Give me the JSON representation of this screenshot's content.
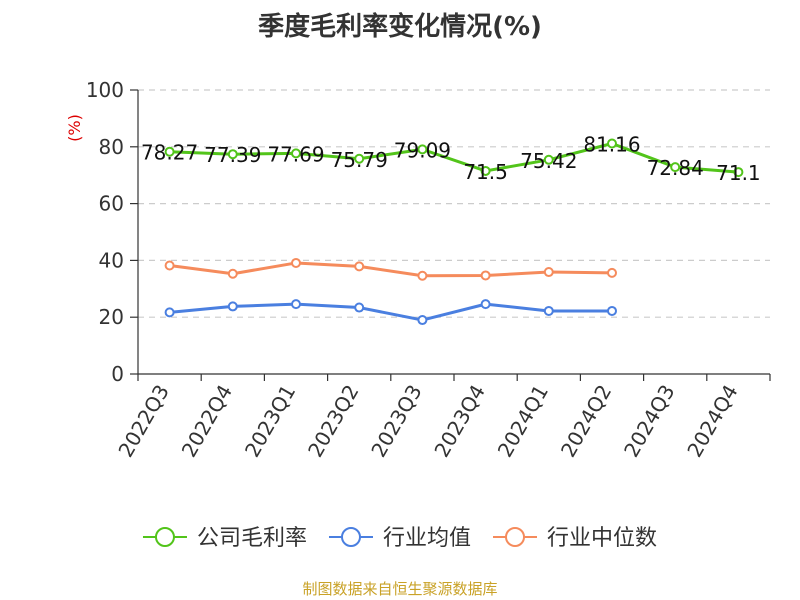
{
  "chart_data": {
    "type": "line",
    "title": "季度毛利率变化情况(%)",
    "y_unit": "(%)",
    "categories": [
      "2022Q3",
      "2022Q4",
      "2023Q1",
      "2023Q2",
      "2023Q3",
      "2023Q4",
      "2024Q1",
      "2024Q2",
      "2024Q3",
      "2024Q4"
    ],
    "ylim": [
      0,
      100
    ],
    "yticks": [
      0,
      20,
      40,
      60,
      80,
      100
    ],
    "grid": true,
    "legend_position": "bottom",
    "series": [
      {
        "name": "公司毛利率",
        "color": "#52c41a",
        "values": [
          78.27,
          77.39,
          77.69,
          75.79,
          79.09,
          71.5,
          75.42,
          81.16,
          72.84,
          71.1
        ],
        "value_labels": [
          "78.27",
          "77.39",
          "77.69",
          "75.79",
          "79.09",
          "71.5",
          "75.42",
          "81.16",
          "72.84",
          "71.1"
        ]
      },
      {
        "name": "行业均值",
        "color": "#4a7fe0",
        "values": [
          21.7,
          23.8,
          24.6,
          23.4,
          19.0,
          24.6,
          22.2,
          22.2,
          null,
          null
        ]
      },
      {
        "name": "行业中位数",
        "color": "#f58b5c",
        "values": [
          38.2,
          35.3,
          39.1,
          37.9,
          34.6,
          34.7,
          35.9,
          35.6,
          null,
          null
        ]
      }
    ]
  },
  "footer": {
    "source": "制图数据来自恒生聚源数据库"
  }
}
